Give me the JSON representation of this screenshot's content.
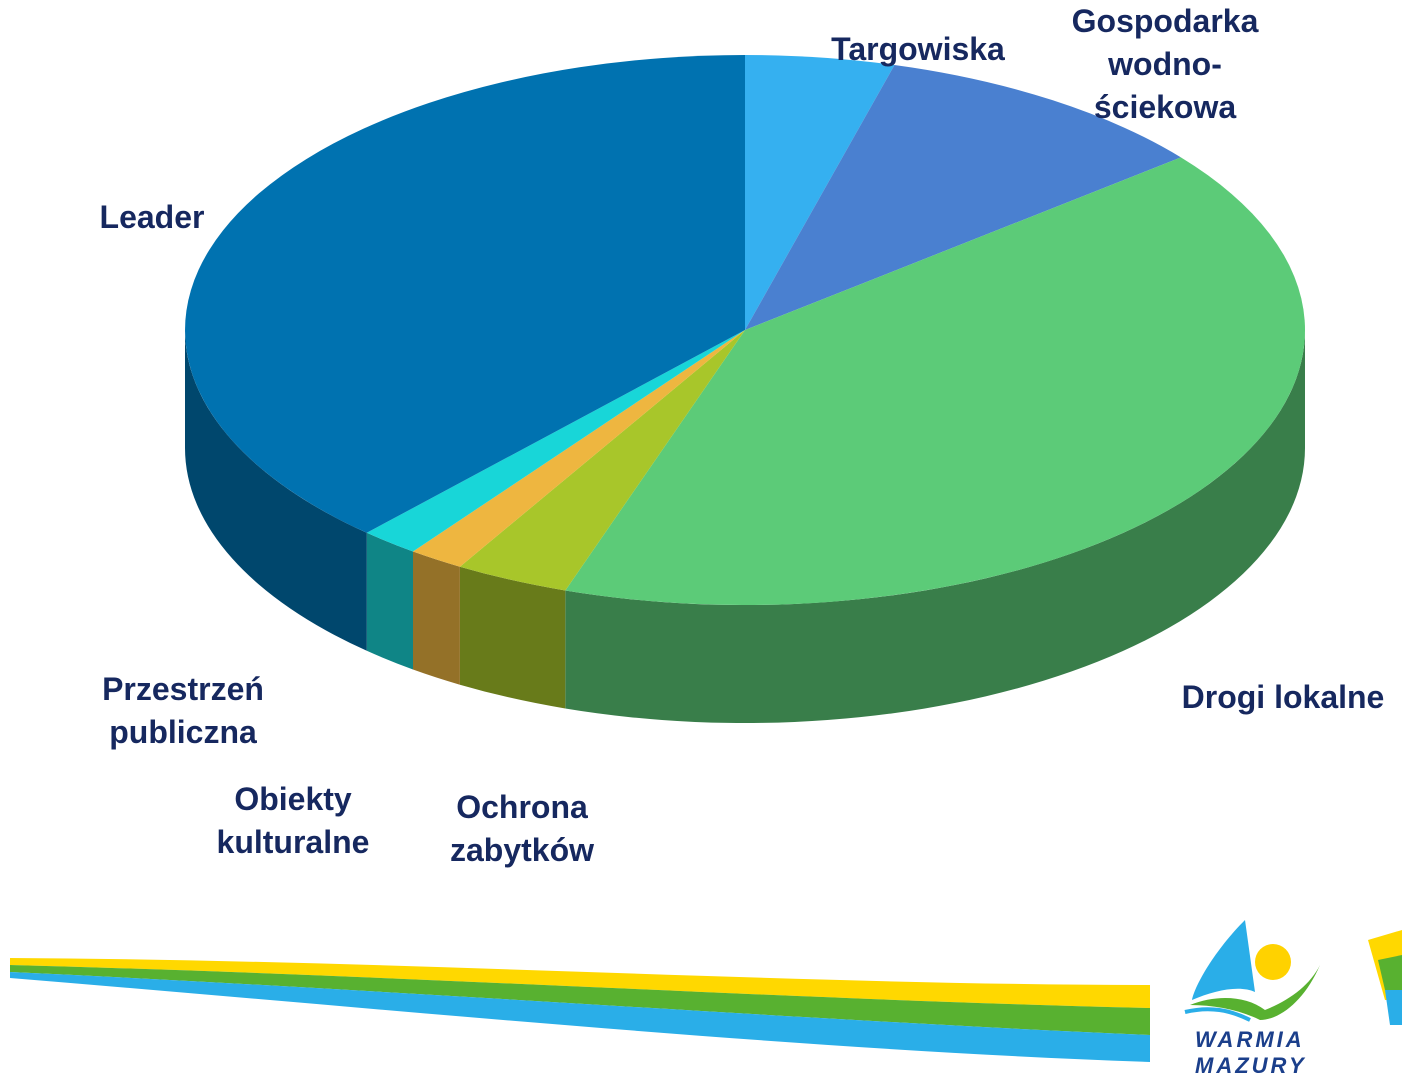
{
  "chart_data": {
    "type": "pie3d",
    "categories": [
      "Targowiska",
      "Gospodarka wodno-ściekowa",
      "Drogi lokalne",
      "Ochrona zabytków",
      "Obiekty kulturalne",
      "Przestrzeń publiczna",
      "Leader"
    ],
    "values": [
      4.3,
      9.9,
      41,
      3.3,
      1.6,
      1.7,
      38.2
    ],
    "colors": [
      "#35b0f0",
      "#4a80d0",
      "#5ccb78",
      "#a8c62a",
      "#eeb640",
      "#18d6d8",
      "#0072b0"
    ]
  },
  "logo": {
    "line1": "WARMIA",
    "line2": "MAZURY"
  }
}
